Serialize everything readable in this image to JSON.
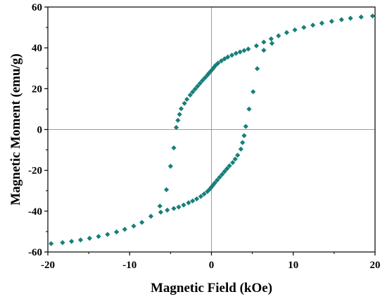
{
  "chart_data": {
    "type": "scatter",
    "title": "",
    "xlabel": "Magnetic Field (kOe)",
    "ylabel": "Magnetic Moment (emu/g)",
    "xlim": [
      -20,
      20
    ],
    "ylim": [
      -60,
      60
    ],
    "x_ticks": [
      -20,
      -10,
      0,
      10,
      20
    ],
    "y_ticks": [
      -60,
      -40,
      -20,
      0,
      20,
      40,
      60
    ],
    "x_tick_labels": [
      "-20",
      "-10",
      "0",
      "10",
      "20"
    ],
    "y_tick_labels": [
      "-60",
      "-40",
      "-20",
      "0",
      "20",
      "40",
      "60"
    ],
    "zero_lines": true,
    "marker": "diamond",
    "color": "#177F7A",
    "series": [
      {
        "values_descending": [
          [
            19.7,
            55.6
          ],
          [
            18.3,
            55.1
          ],
          [
            17.0,
            54.5
          ],
          [
            15.9,
            53.8
          ],
          [
            14.7,
            53.0
          ],
          [
            13.5,
            52.1
          ],
          [
            12.4,
            51.1
          ],
          [
            11.3,
            50.0
          ],
          [
            10.2,
            48.8
          ],
          [
            9.2,
            47.5
          ],
          [
            8.2,
            45.9
          ],
          [
            7.3,
            44.4
          ],
          [
            6.4,
            42.8
          ],
          [
            5.5,
            41.0
          ],
          [
            4.5,
            39.4
          ],
          [
            4.0,
            38.7
          ],
          [
            3.5,
            38.0
          ],
          [
            3.0,
            37.3
          ],
          [
            2.5,
            36.4
          ],
          [
            2.0,
            35.5
          ],
          [
            1.6,
            34.6
          ],
          [
            1.2,
            33.6
          ],
          [
            0.8,
            32.5
          ],
          [
            0.5,
            31.4
          ],
          [
            0.3,
            30.4
          ],
          [
            0.1,
            29.4
          ],
          [
            -0.1,
            28.5
          ],
          [
            -0.3,
            27.6
          ],
          [
            -0.5,
            26.6
          ],
          [
            -0.8,
            25.3
          ],
          [
            -1.1,
            24.0
          ],
          [
            -1.4,
            22.6
          ],
          [
            -1.7,
            21.2
          ],
          [
            -2.0,
            19.8
          ],
          [
            -2.3,
            18.4
          ],
          [
            -2.6,
            16.9
          ],
          [
            -3.0,
            14.8
          ],
          [
            -3.3,
            12.8
          ],
          [
            -3.7,
            10.2
          ],
          [
            -3.9,
            7.4
          ],
          [
            -4.1,
            4.5
          ],
          [
            -4.3,
            1.0
          ],
          [
            -4.6,
            -9.0
          ],
          [
            -5.0,
            -18.0
          ],
          [
            -5.5,
            -29.5
          ],
          [
            -6.3,
            -37.5
          ],
          [
            -7.4,
            -42.5
          ],
          [
            -8.5,
            -45.5
          ],
          [
            -9.5,
            -47.3
          ],
          [
            -10.6,
            -48.9
          ],
          [
            -11.6,
            -50.2
          ],
          [
            -12.7,
            -51.4
          ],
          [
            -13.8,
            -52.4
          ],
          [
            -14.9,
            -53.3
          ],
          [
            -16.0,
            -54.1
          ],
          [
            -17.1,
            -54.8
          ],
          [
            -18.2,
            -55.4
          ],
          [
            -19.6,
            -55.9
          ]
        ]
      },
      {
        "values_ascending": [
          [
            -6.2,
            -40.5
          ],
          [
            -5.4,
            -39.5
          ],
          [
            -4.6,
            -38.7
          ],
          [
            -4.0,
            -38.0
          ],
          [
            -3.4,
            -37.0
          ],
          [
            -2.8,
            -35.9
          ],
          [
            -2.3,
            -35.0
          ],
          [
            -1.8,
            -34.0
          ],
          [
            -1.3,
            -32.8
          ],
          [
            -0.9,
            -31.6
          ],
          [
            -0.5,
            -30.4
          ],
          [
            -0.2,
            -29.2
          ],
          [
            0.0,
            -28.2
          ],
          [
            0.2,
            -27.2
          ],
          [
            0.4,
            -26.2
          ],
          [
            0.7,
            -24.8
          ],
          [
            1.0,
            -23.4
          ],
          [
            1.3,
            -22.0
          ],
          [
            1.6,
            -20.6
          ],
          [
            1.9,
            -19.2
          ],
          [
            2.2,
            -17.8
          ],
          [
            2.6,
            -16.2
          ],
          [
            2.9,
            -14.5
          ],
          [
            3.2,
            -12.6
          ],
          [
            3.6,
            -9.6
          ],
          [
            3.8,
            -6.4
          ],
          [
            4.0,
            -3.0
          ],
          [
            4.2,
            1.5
          ],
          [
            4.6,
            10.0
          ],
          [
            5.1,
            18.5
          ],
          [
            5.6,
            29.8
          ],
          [
            6.4,
            38.8
          ],
          [
            7.4,
            42.2
          ]
        ]
      }
    ]
  }
}
